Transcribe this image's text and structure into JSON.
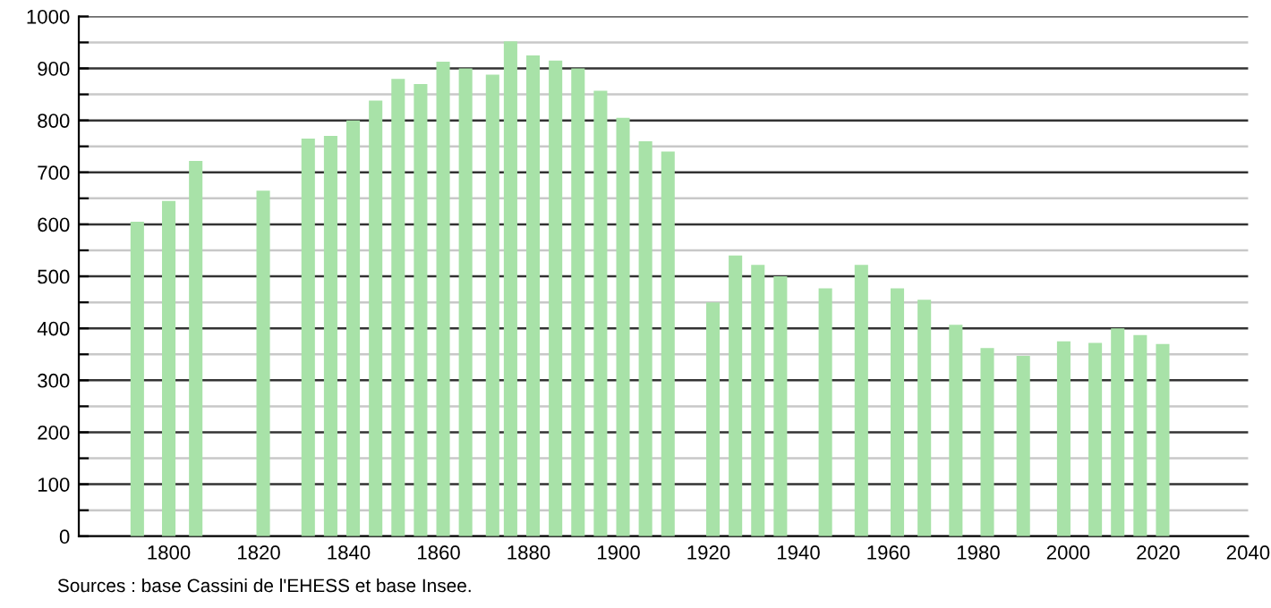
{
  "chart_data": {
    "type": "bar",
    "x": [
      1793,
      1800,
      1806,
      1821,
      1831,
      1836,
      1841,
      1846,
      1851,
      1856,
      1861,
      1866,
      1872,
      1876,
      1881,
      1886,
      1891,
      1896,
      1901,
      1906,
      1911,
      1921,
      1926,
      1931,
      1936,
      1946,
      1954,
      1962,
      1968,
      1975,
      1982,
      1990,
      1999,
      2006,
      2011,
      2016,
      2021
    ],
    "values": [
      605,
      645,
      722,
      665,
      765,
      770,
      800,
      838,
      880,
      870,
      913,
      900,
      888,
      952,
      925,
      915,
      900,
      857,
      805,
      760,
      740,
      450,
      540,
      522,
      500,
      477,
      522,
      477,
      455,
      407,
      362,
      347,
      375,
      372,
      400,
      387,
      370
    ],
    "color": "#a8e2a8",
    "xlim": [
      1780,
      2040
    ],
    "xticks": [
      1800,
      1820,
      1840,
      1860,
      1880,
      1900,
      1920,
      1940,
      1960,
      1980,
      2000,
      2020,
      2040
    ],
    "ylim": [
      0,
      1000
    ],
    "yticks": [
      0,
      {
        "value": 50,
        "label": null
      },
      100,
      {
        "value": 150,
        "label": null
      },
      200,
      {
        "value": 250,
        "label": null
      },
      300,
      {
        "value": 350,
        "label": null
      },
      400,
      {
        "value": 450,
        "label": null
      },
      500,
      {
        "value": 550,
        "label": null
      },
      600,
      {
        "value": 650,
        "label": null
      },
      700,
      {
        "value": 750,
        "label": null
      },
      800,
      {
        "value": 850,
        "label": null
      },
      900,
      {
        "value": 950,
        "label": null
      },
      1000
    ],
    "grid": "y",
    "annotations": [
      "Sources : base Cassini de l'EHESS et base Insee."
    ]
  }
}
